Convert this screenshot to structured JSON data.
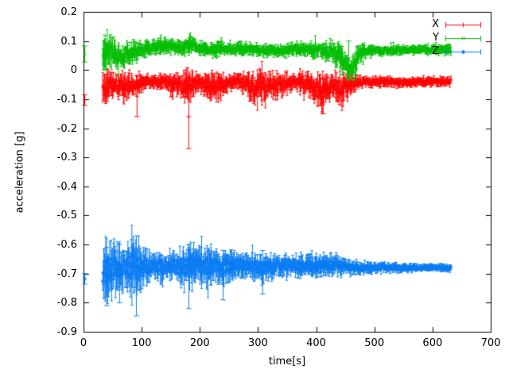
{
  "chart_data": {
    "type": "scatter",
    "style": "errorbars",
    "title": "",
    "xlabel": "time[s]",
    "ylabel": "acceleration [g]",
    "xlim": [
      0,
      700
    ],
    "ylim": [
      -0.9,
      0.2
    ],
    "grid": false,
    "legend_position": "top-right-inside",
    "x_ticks": [
      {
        "v": 0,
        "label": "0"
      },
      {
        "v": 100,
        "label": "100"
      },
      {
        "v": 200,
        "label": "200"
      },
      {
        "v": 300,
        "label": "300"
      },
      {
        "v": 400,
        "label": "400"
      },
      {
        "v": 500,
        "label": "500"
      },
      {
        "v": 600,
        "label": "600"
      },
      {
        "v": 700,
        "label": "700"
      }
    ],
    "y_ticks": [
      {
        "v": 0.2,
        "label": "0.2"
      },
      {
        "v": 0.1,
        "label": "0.1"
      },
      {
        "v": 0,
        "label": "0"
      },
      {
        "v": -0.1,
        "label": "-0.1"
      },
      {
        "v": -0.2,
        "label": "-0.2"
      },
      {
        "v": -0.3,
        "label": "-0.3"
      },
      {
        "v": -0.4,
        "label": "-0.4"
      },
      {
        "v": -0.5,
        "label": "-0.5"
      },
      {
        "v": -0.6,
        "label": "-0.6"
      },
      {
        "v": -0.7,
        "label": "-0.7"
      },
      {
        "v": -0.8,
        "label": "-0.8"
      },
      {
        "v": -0.9,
        "label": "-0.9"
      }
    ],
    "series": [
      {
        "name": "X",
        "color": "#ff0000",
        "marker": "plus",
        "band_start": 33,
        "band_end": 632,
        "isolated_points": [
          [
            2,
            -0.103,
            0.018
          ]
        ],
        "envelope": [
          [
            33,
            -0.075,
            0.05
          ],
          [
            45,
            -0.05,
            0.04
          ],
          [
            55,
            -0.05,
            0.03
          ],
          [
            70,
            -0.065,
            0.04
          ],
          [
            80,
            -0.055,
            0.03
          ],
          [
            95,
            -0.045,
            0.025
          ],
          [
            110,
            -0.04,
            0.02
          ],
          [
            125,
            -0.045,
            0.02
          ],
          [
            140,
            -0.04,
            0.02
          ],
          [
            155,
            -0.05,
            0.03
          ],
          [
            170,
            -0.055,
            0.035
          ],
          [
            180,
            -0.06,
            0.045
          ],
          [
            190,
            -0.05,
            0.03
          ],
          [
            205,
            -0.045,
            0.025
          ],
          [
            220,
            -0.06,
            0.04
          ],
          [
            235,
            -0.055,
            0.035
          ],
          [
            250,
            -0.04,
            0.02
          ],
          [
            265,
            -0.04,
            0.02
          ],
          [
            280,
            -0.05,
            0.03
          ],
          [
            295,
            -0.065,
            0.04
          ],
          [
            310,
            -0.06,
            0.045
          ],
          [
            320,
            -0.045,
            0.03
          ],
          [
            335,
            -0.055,
            0.035
          ],
          [
            350,
            -0.045,
            0.025
          ],
          [
            365,
            -0.04,
            0.02
          ],
          [
            380,
            -0.045,
            0.03
          ],
          [
            395,
            -0.055,
            0.035
          ],
          [
            408,
            -0.08,
            0.05
          ],
          [
            420,
            -0.06,
            0.04
          ],
          [
            432,
            -0.05,
            0.03
          ],
          [
            445,
            -0.065,
            0.045
          ],
          [
            458,
            -0.05,
            0.03
          ],
          [
            470,
            -0.042,
            0.018
          ],
          [
            490,
            -0.04,
            0.014
          ],
          [
            520,
            -0.04,
            0.013
          ],
          [
            560,
            -0.042,
            0.012
          ],
          [
            600,
            -0.04,
            0.012
          ],
          [
            632,
            -0.04,
            0.014
          ]
        ],
        "outliers": [
          [
            181,
            -0.27,
            -0.05
          ],
          [
            92,
            -0.16,
            -0.02
          ],
          [
            412,
            -0.15,
            -0.03
          ]
        ]
      },
      {
        "name": "Y",
        "color": "#00bd00",
        "marker": "x",
        "band_start": 33,
        "band_end": 632,
        "isolated_points": [
          [
            2,
            0.055,
            0.028
          ]
        ],
        "envelope": [
          [
            33,
            0.06,
            0.05
          ],
          [
            45,
            0.07,
            0.04
          ],
          [
            55,
            0.05,
            0.035
          ],
          [
            65,
            0.045,
            0.03
          ],
          [
            75,
            0.055,
            0.035
          ],
          [
            85,
            0.06,
            0.03
          ],
          [
            95,
            0.065,
            0.025
          ],
          [
            110,
            0.075,
            0.02
          ],
          [
            125,
            0.08,
            0.02
          ],
          [
            140,
            0.085,
            0.02
          ],
          [
            155,
            0.08,
            0.018
          ],
          [
            170,
            0.075,
            0.02
          ],
          [
            183,
            0.088,
            0.028
          ],
          [
            195,
            0.078,
            0.018
          ],
          [
            210,
            0.072,
            0.018
          ],
          [
            225,
            0.07,
            0.02
          ],
          [
            240,
            0.075,
            0.018
          ],
          [
            255,
            0.072,
            0.016
          ],
          [
            270,
            0.075,
            0.016
          ],
          [
            285,
            0.072,
            0.016
          ],
          [
            300,
            0.07,
            0.016
          ],
          [
            315,
            0.068,
            0.018
          ],
          [
            330,
            0.065,
            0.016
          ],
          [
            345,
            0.068,
            0.016
          ],
          [
            360,
            0.072,
            0.018
          ],
          [
            375,
            0.075,
            0.018
          ],
          [
            390,
            0.07,
            0.02
          ],
          [
            405,
            0.068,
            0.022
          ],
          [
            418,
            0.065,
            0.025
          ],
          [
            430,
            0.06,
            0.03
          ],
          [
            442,
            0.045,
            0.035
          ],
          [
            452,
            0.012,
            0.035
          ],
          [
            460,
            -0.005,
            0.03
          ],
          [
            468,
            0.03,
            0.045
          ],
          [
            476,
            0.062,
            0.022
          ],
          [
            490,
            0.065,
            0.015
          ],
          [
            520,
            0.068,
            0.013
          ],
          [
            560,
            0.07,
            0.012
          ],
          [
            600,
            0.07,
            0.012
          ],
          [
            632,
            0.07,
            0.013
          ]
        ],
        "outliers": [
          [
            456,
            -0.03,
            0.1
          ],
          [
            37,
            0.0,
            0.12
          ]
        ]
      },
      {
        "name": "Z",
        "color": "#0a7cf2",
        "marker": "star",
        "band_start": 33,
        "band_end": 632,
        "isolated_points": [
          [
            2,
            -0.718,
            0.018
          ]
        ],
        "envelope": [
          [
            33,
            -0.69,
            0.075
          ],
          [
            45,
            -0.68,
            0.085
          ],
          [
            55,
            -0.685,
            0.08
          ],
          [
            65,
            -0.675,
            0.065
          ],
          [
            75,
            -0.67,
            0.06
          ],
          [
            85,
            -0.68,
            0.08
          ],
          [
            95,
            -0.685,
            0.07
          ],
          [
            105,
            -0.675,
            0.05
          ],
          [
            115,
            -0.672,
            0.04
          ],
          [
            130,
            -0.675,
            0.038
          ],
          [
            145,
            -0.67,
            0.032
          ],
          [
            160,
            -0.675,
            0.04
          ],
          [
            175,
            -0.68,
            0.055
          ],
          [
            185,
            -0.678,
            0.06
          ],
          [
            195,
            -0.672,
            0.05
          ],
          [
            210,
            -0.675,
            0.05
          ],
          [
            225,
            -0.672,
            0.048
          ],
          [
            240,
            -0.675,
            0.045
          ],
          [
            255,
            -0.672,
            0.04
          ],
          [
            270,
            -0.67,
            0.035
          ],
          [
            285,
            -0.673,
            0.032
          ],
          [
            300,
            -0.678,
            0.038
          ],
          [
            315,
            -0.68,
            0.04
          ],
          [
            330,
            -0.675,
            0.032
          ],
          [
            345,
            -0.67,
            0.035
          ],
          [
            360,
            -0.673,
            0.03
          ],
          [
            375,
            -0.675,
            0.03
          ],
          [
            390,
            -0.67,
            0.03
          ],
          [
            405,
            -0.673,
            0.034
          ],
          [
            420,
            -0.67,
            0.03
          ],
          [
            435,
            -0.672,
            0.028
          ],
          [
            450,
            -0.675,
            0.024
          ],
          [
            465,
            -0.678,
            0.02
          ],
          [
            480,
            -0.68,
            0.018
          ],
          [
            500,
            -0.68,
            0.015
          ],
          [
            530,
            -0.68,
            0.013
          ],
          [
            560,
            -0.68,
            0.011
          ],
          [
            600,
            -0.68,
            0.01
          ],
          [
            632,
            -0.68,
            0.01
          ]
        ],
        "outliers": [
          [
            40,
            -0.81,
            -0.61
          ],
          [
            62,
            -0.8,
            -0.6
          ],
          [
            91,
            -0.845,
            -0.57
          ],
          [
            181,
            -0.82,
            -0.6
          ],
          [
            240,
            -0.79,
            -0.62
          ],
          [
            308,
            -0.77,
            -0.62
          ]
        ]
      }
    ]
  }
}
